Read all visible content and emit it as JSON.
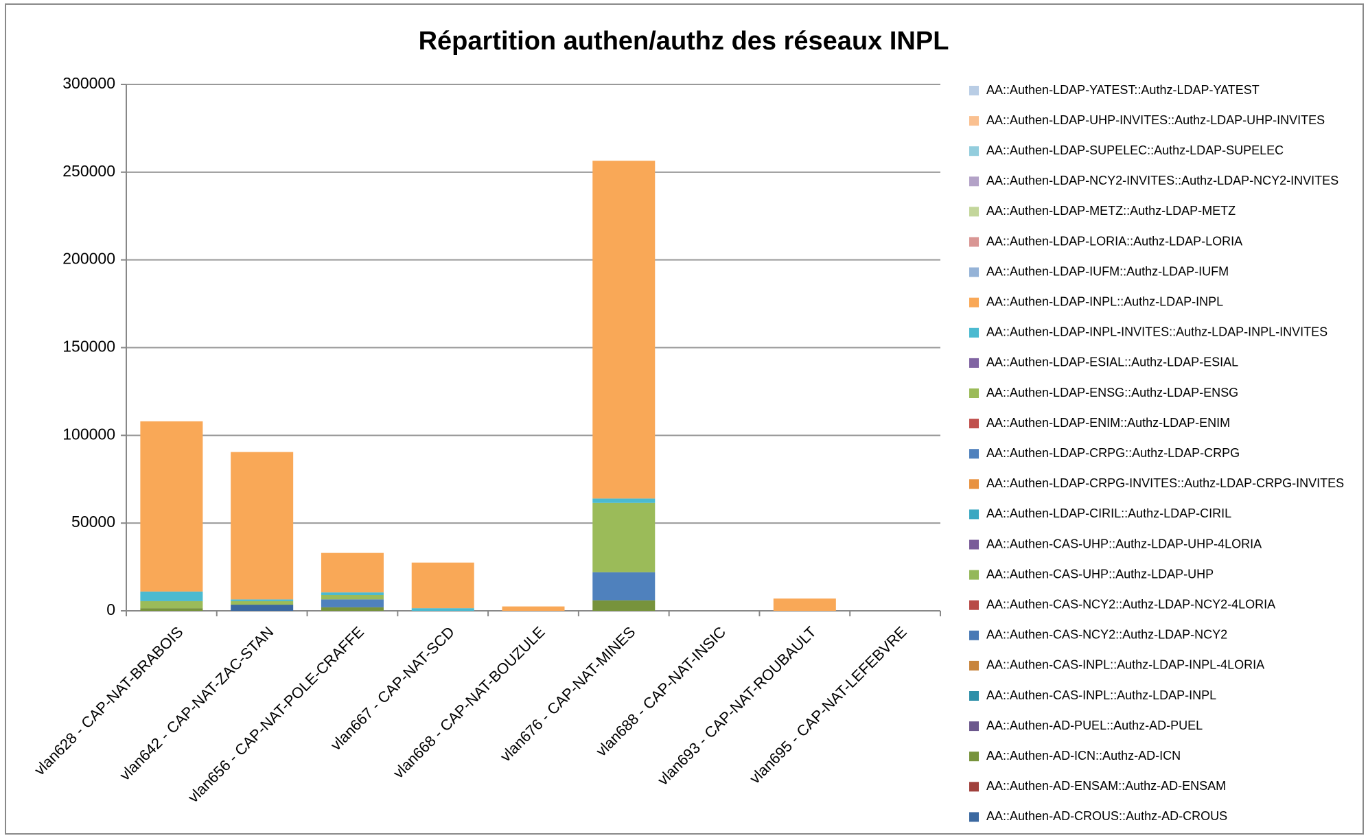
{
  "chart_data": {
    "type": "bar",
    "stacked": true,
    "title": "Répartition authen/authz des réseaux INPL",
    "categories": [
      "vlan628 - CAP-NAT-BRABOIS",
      "vlan642 - CAP-NAT-ZAC-STAN",
      "vlan656 - CAP-NAT-POLE-CRAFFE",
      "vlan667 - CAP-NAT-SCD",
      "vlan668 - CAP-NAT-BOUZULE",
      "vlan676 - CAP-NAT-MINES",
      "vlan688 - CAP-NAT-INSIC",
      "vlan693 - CAP-NAT-ROUBAULT",
      "vlan695 - CAP-NAT-LEFEBVRE"
    ],
    "ylim": [
      0,
      300000
    ],
    "yticks": [
      0,
      50000,
      100000,
      150000,
      200000,
      250000,
      300000
    ],
    "grid": true,
    "series": [
      {
        "name": "AA::Authen-LDAP-YATEST::Authz-LDAP-YATEST",
        "color": "#b9cde5",
        "values": [
          0,
          0,
          0,
          0,
          0,
          0,
          0,
          0,
          0
        ]
      },
      {
        "name": "AA::Authen-LDAP-UHP-INVITES::Authz-LDAP-UHP-INVITES",
        "color": "#fac090",
        "values": [
          0,
          0,
          0,
          0,
          0,
          0,
          0,
          0,
          0
        ]
      },
      {
        "name": "AA::Authen-LDAP-SUPELEC::Authz-LDAP-SUPELEC",
        "color": "#93cddd",
        "values": [
          0,
          0,
          0,
          0,
          0,
          0,
          0,
          0,
          0
        ]
      },
      {
        "name": "AA::Authen-LDAP-NCY2-INVITES::Authz-LDAP-NCY2-INVITES",
        "color": "#b3a2c7",
        "values": [
          0,
          0,
          0,
          0,
          0,
          0,
          0,
          0,
          0
        ]
      },
      {
        "name": "AA::Authen-LDAP-METZ::Authz-LDAP-METZ",
        "color": "#c3d69b",
        "values": [
          0,
          0,
          0,
          0,
          0,
          0,
          0,
          0,
          0
        ]
      },
      {
        "name": "AA::Authen-LDAP-LORIA::Authz-LDAP-LORIA",
        "color": "#d99694",
        "values": [
          0,
          0,
          0,
          0,
          0,
          0,
          0,
          0,
          0
        ]
      },
      {
        "name": "AA::Authen-LDAP-IUFM::Authz-LDAP-IUFM",
        "color": "#95b3d7",
        "values": [
          0,
          0,
          0,
          0,
          0,
          0,
          0,
          0,
          0
        ]
      },
      {
        "name": "AA::Authen-LDAP-INPL::Authz-LDAP-INPL",
        "color": "#f9a857",
        "values": [
          97000,
          84000,
          22500,
          26000,
          2500,
          192500,
          0,
          7000,
          0
        ]
      },
      {
        "name": "AA::Authen-LDAP-INPL-INVITES::Authz-LDAP-INPL-INVITES",
        "color": "#4bbad0",
        "values": [
          5500,
          1000,
          1500,
          1500,
          0,
          2500,
          0,
          0,
          0
        ]
      },
      {
        "name": "AA::Authen-LDAP-ESIAL::Authz-LDAP-ESIAL",
        "color": "#8064a2",
        "values": [
          0,
          0,
          0,
          0,
          0,
          0,
          0,
          0,
          0
        ]
      },
      {
        "name": "AA::Authen-LDAP-ENSG::Authz-LDAP-ENSG",
        "color": "#9bbb59",
        "values": [
          4000,
          2000,
          2500,
          0,
          0,
          39500,
          0,
          0,
          0
        ]
      },
      {
        "name": "AA::Authen-LDAP-ENIM::Authz-LDAP-ENIM",
        "color": "#c0504d",
        "values": [
          0,
          0,
          0,
          0,
          0,
          0,
          0,
          0,
          0
        ]
      },
      {
        "name": "AA::Authen-LDAP-CRPG::Authz-LDAP-CRPG",
        "color": "#4f81bd",
        "values": [
          0,
          0,
          4500,
          0,
          0,
          16000,
          0,
          0,
          0
        ]
      },
      {
        "name": "AA::Authen-LDAP-CRPG-INVITES::Authz-LDAP-CRPG-INVITES",
        "color": "#e8913f",
        "values": [
          0,
          0,
          0,
          0,
          0,
          0,
          0,
          0,
          0
        ]
      },
      {
        "name": "AA::Authen-LDAP-CIRIL::Authz-LDAP-CIRIL",
        "color": "#3ca8c2",
        "values": [
          0,
          0,
          0,
          0,
          0,
          0,
          0,
          0,
          0
        ]
      },
      {
        "name": "AA::Authen-CAS-UHP::Authz-LDAP-UHP-4LORIA",
        "color": "#7a5c99",
        "values": [
          0,
          0,
          0,
          0,
          0,
          0,
          0,
          0,
          0
        ]
      },
      {
        "name": "AA::Authen-CAS-UHP::Authz-LDAP-UHP",
        "color": "#94b85a",
        "values": [
          0,
          0,
          0,
          0,
          0,
          0,
          0,
          0,
          0
        ]
      },
      {
        "name": "AA::Authen-CAS-NCY2::Authz-LDAP-NCY2-4LORIA",
        "color": "#b84a46",
        "values": [
          0,
          0,
          0,
          0,
          0,
          0,
          0,
          0,
          0
        ]
      },
      {
        "name": "AA::Authen-CAS-NCY2::Authz-LDAP-NCY2",
        "color": "#4a7ab5",
        "values": [
          0,
          0,
          0,
          0,
          0,
          0,
          0,
          0,
          0
        ]
      },
      {
        "name": "AA::Authen-CAS-INPL::Authz-LDAP-INPL-4LORIA",
        "color": "#c8843c",
        "values": [
          0,
          0,
          0,
          0,
          0,
          0,
          0,
          0,
          0
        ]
      },
      {
        "name": "AA::Authen-CAS-INPL::Authz-LDAP-INPL",
        "color": "#2e8fa8",
        "values": [
          0,
          0,
          0,
          0,
          0,
          0,
          0,
          0,
          0
        ]
      },
      {
        "name": "AA::Authen-AD-PUEL::Authz-AD-PUEL",
        "color": "#6b578c",
        "values": [
          0,
          0,
          0,
          0,
          0,
          0,
          0,
          0,
          0
        ]
      },
      {
        "name": "AA::Authen-AD-ICN::Authz-AD-ICN",
        "color": "#77933c",
        "values": [
          1500,
          0,
          2000,
          0,
          0,
          6000,
          0,
          0,
          0
        ]
      },
      {
        "name": "AA::Authen-AD-ENSAM::Authz-AD-ENSAM",
        "color": "#a0403c",
        "values": [
          0,
          0,
          0,
          0,
          0,
          0,
          0,
          0,
          0
        ]
      },
      {
        "name": "AA::Authen-AD-CROUS::Authz-AD-CROUS",
        "color": "#3b68a0",
        "values": [
          0,
          3500,
          0,
          0,
          0,
          0,
          0,
          0,
          0
        ]
      }
    ]
  }
}
